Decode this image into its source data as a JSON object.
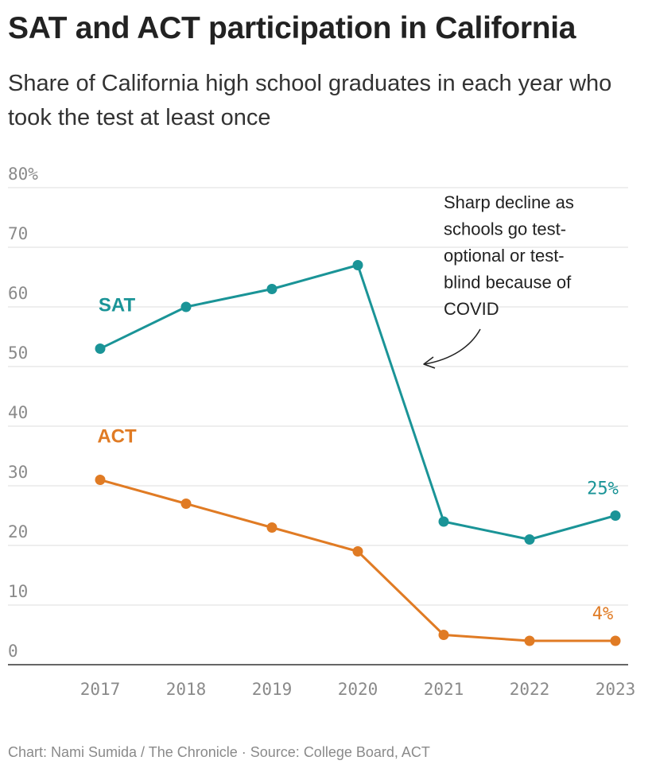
{
  "header": {
    "title": "SAT and ACT participation in California",
    "subtitle": "Share of California high school graduates in each year who took the test at least once"
  },
  "footer": {
    "credit": "Chart: Nami Sumida / The Chronicle · Source: College Board, ACT"
  },
  "chart_data": {
    "type": "line",
    "title": "SAT and ACT participation in California",
    "subtitle": "Share of California high school graduates in each year who took the test at least once",
    "xlabel": "",
    "ylabel": "",
    "categories": [
      "2017",
      "2018",
      "2019",
      "2020",
      "2021",
      "2022",
      "2023"
    ],
    "ylim": [
      0,
      80
    ],
    "yticks": [
      {
        "value": 0,
        "label": "0"
      },
      {
        "value": 10,
        "label": "10"
      },
      {
        "value": 20,
        "label": "20"
      },
      {
        "value": 30,
        "label": "30"
      },
      {
        "value": 40,
        "label": "40"
      },
      {
        "value": 50,
        "label": "50"
      },
      {
        "value": 60,
        "label": "60"
      },
      {
        "value": 70,
        "label": "70"
      },
      {
        "value": 80,
        "label": "80%"
      }
    ],
    "grid": true,
    "series": [
      {
        "name": "SAT",
        "color": "#1a9497",
        "values": [
          53,
          60,
          63,
          67,
          24,
          21,
          25
        ],
        "end_label": "25%"
      },
      {
        "name": "ACT",
        "color": "#e07b24",
        "values": [
          31,
          27,
          23,
          19,
          5,
          4,
          4
        ],
        "end_label": "4%"
      }
    ],
    "annotation": {
      "lines": [
        "Sharp decline as",
        "schools go test-",
        "optional or test-",
        "blind because of",
        "COVID"
      ]
    }
  }
}
